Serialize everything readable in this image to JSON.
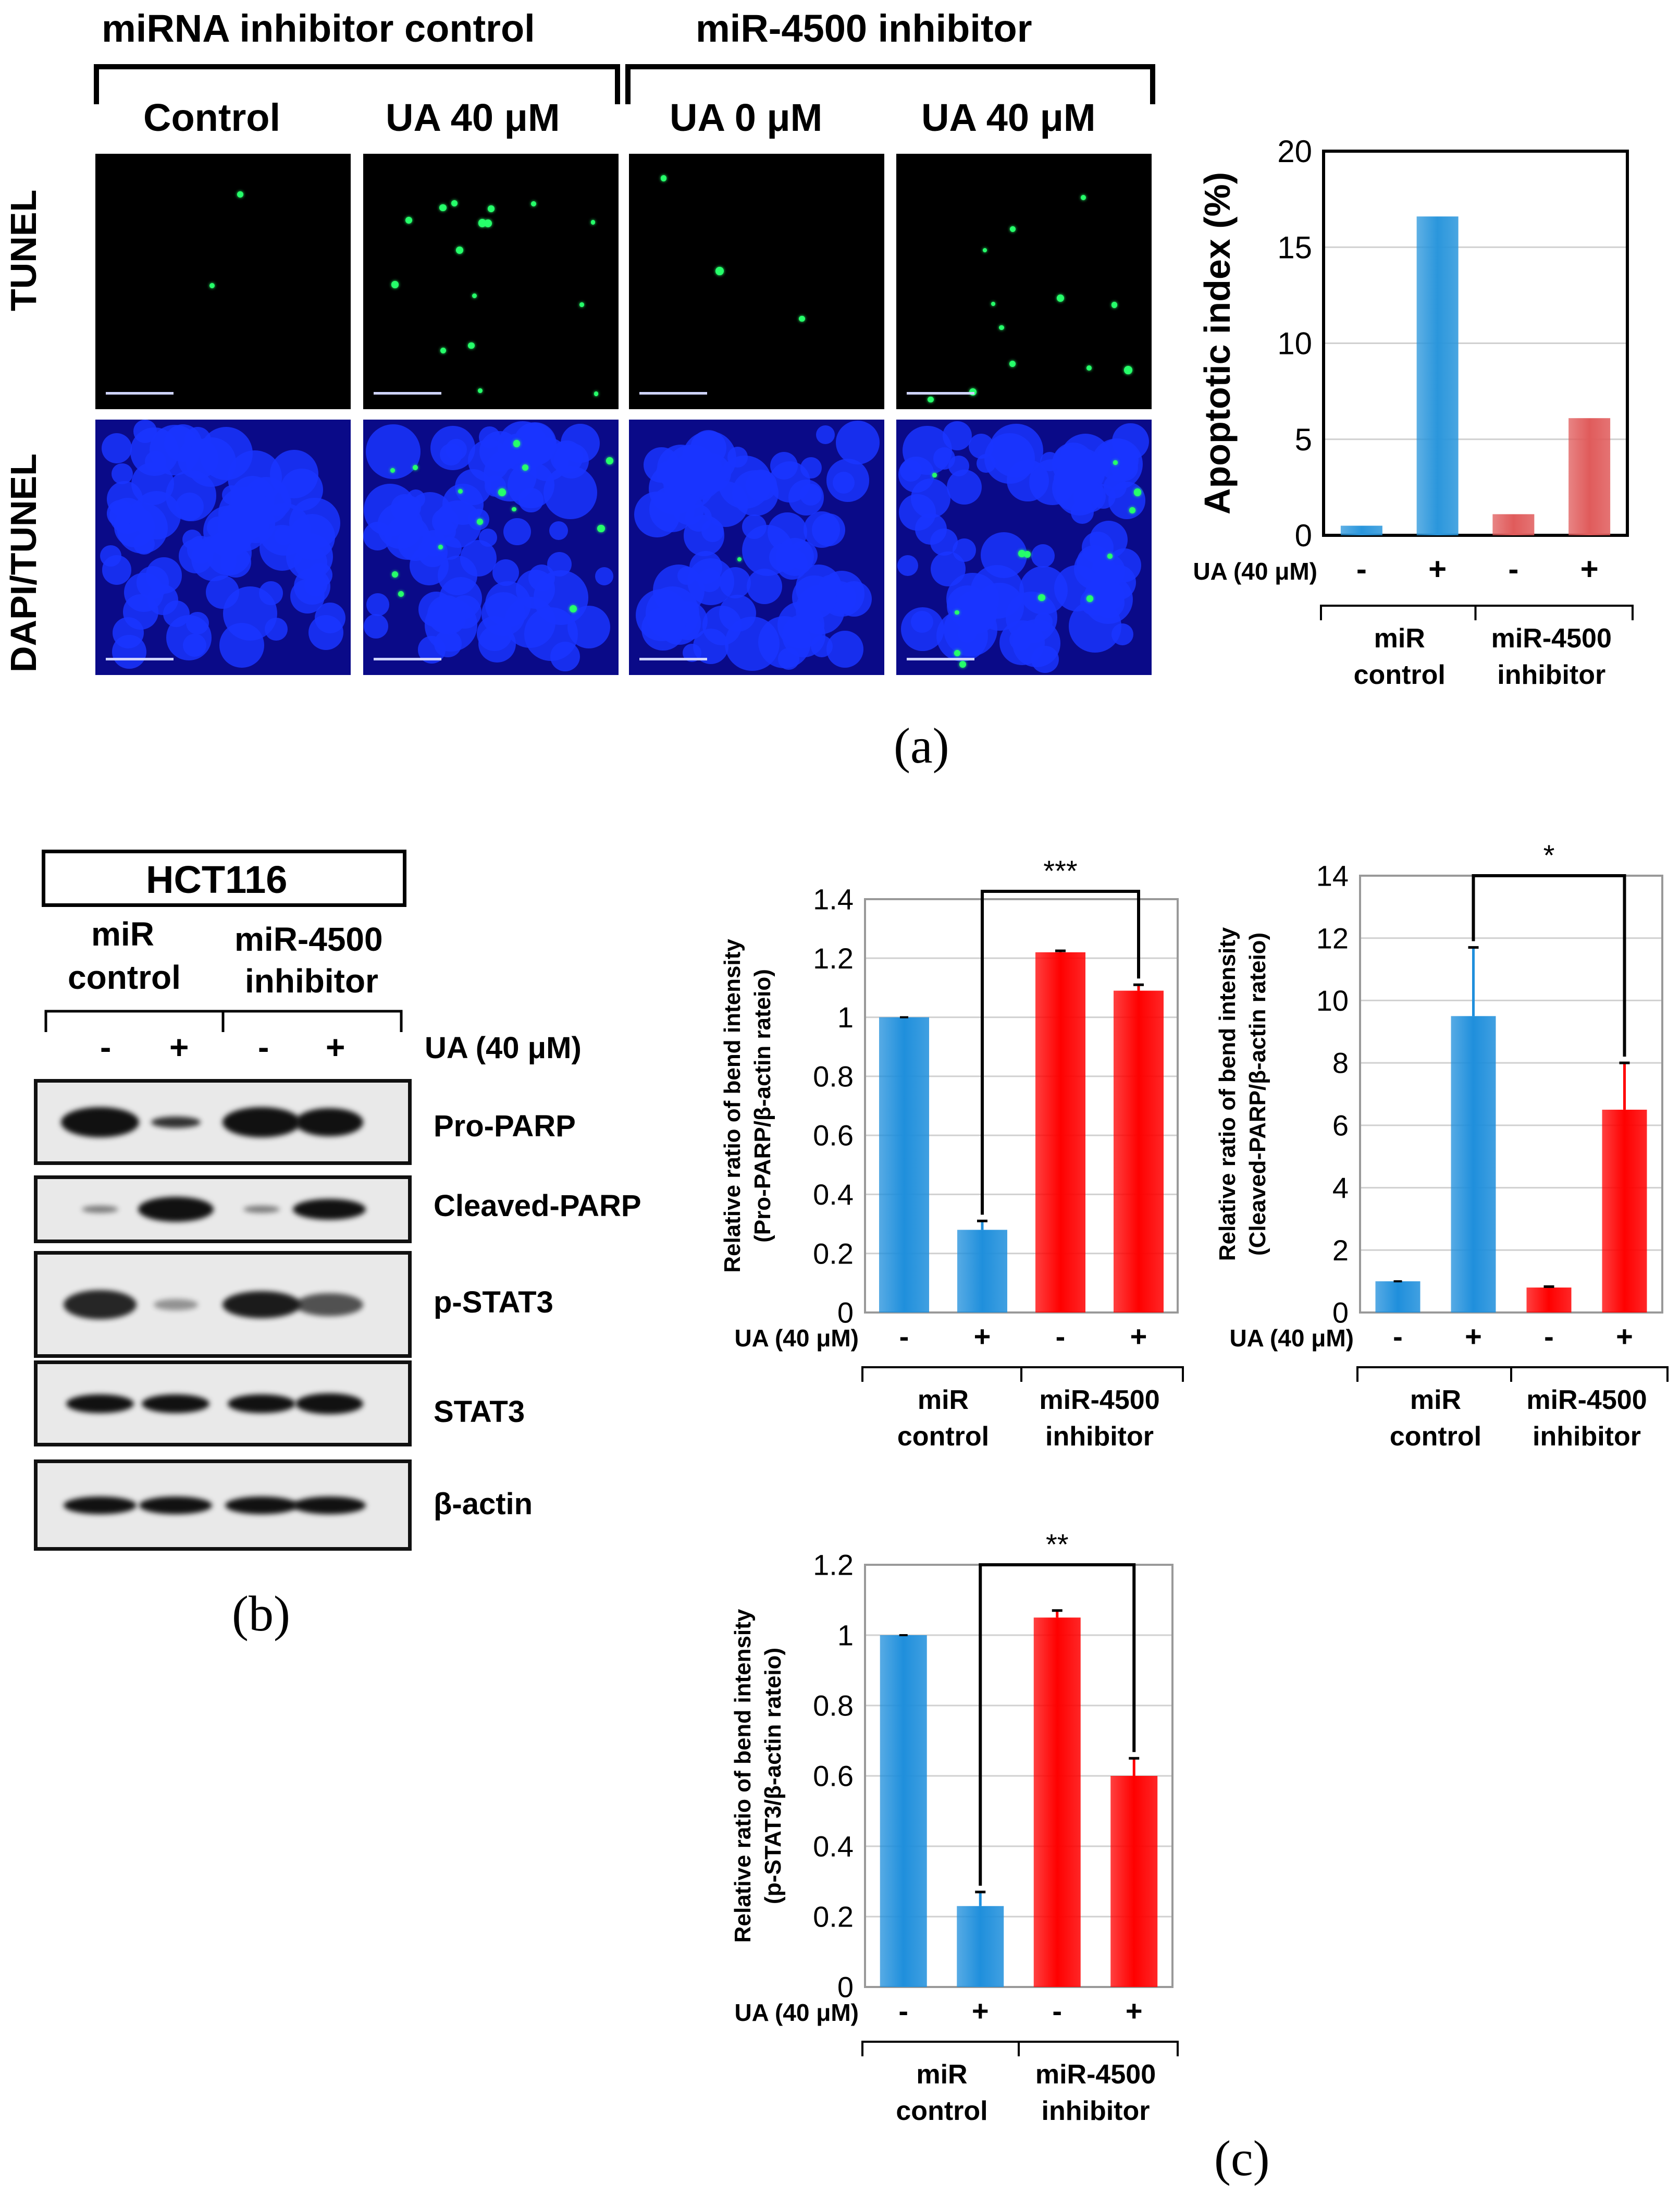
{
  "panel_a": {
    "letter": "(a)",
    "group_left": "miRNA inhibitor control",
    "group_right": "miR-4500 inhibitor",
    "col_labels": [
      "Control",
      "UA 40 μM",
      "UA 0 μM",
      "UA 40 μM"
    ],
    "row_labels": [
      "TUNEL",
      "DAPI/TUNEL"
    ]
  },
  "panel_b": {
    "letter": "(b)",
    "cell_line": "HCT116",
    "group1": [
      "miR",
      "control"
    ],
    "group2": [
      "miR-4500",
      "inhibitor"
    ],
    "signs": [
      "-",
      "+",
      "-",
      "+"
    ],
    "treatment_label": "UA (40 μM)",
    "blot_labels": [
      "Pro-PARP",
      "Cleaved-PARP",
      "p-STAT3",
      "STAT3",
      "β-actin"
    ]
  },
  "panel_c": {
    "letter": "(c)"
  },
  "colors": {
    "blue": "#1f8fdc",
    "red_a": "#e05b5b",
    "red_c": "#ff0000"
  },
  "chart_data": [
    {
      "id": "apoptotic",
      "type": "bar",
      "ylabel": "Apoptotic index (%)",
      "ylim": [
        0,
        20
      ],
      "yticks": [
        0,
        5,
        10,
        15,
        20
      ],
      "treatment_label": "UA (40 μM)",
      "signs": [
        "-",
        "+",
        "-",
        "+"
      ],
      "groups": [
        [
          "miR",
          "control"
        ],
        [
          "miR-4500",
          "inhibitor"
        ]
      ],
      "values": [
        0.5,
        16.6,
        1.1,
        6.1
      ],
      "colors": [
        "#2a96dc",
        "#2a96dc",
        "#e05b5b",
        "#e05b5b"
      ],
      "grid": true
    },
    {
      "id": "propa",
      "type": "bar",
      "ylabel": [
        "Relative ratio of bend intensity",
        "(Pro-PARP/β-actin rateio)"
      ],
      "ylim": [
        0,
        1.4
      ],
      "yticks": [
        "0",
        "0.2",
        "0.4",
        "0.6",
        "0.8",
        "1",
        "1.2",
        "1.4"
      ],
      "treatment_label": "UA (40 μM)",
      "signs": [
        "-",
        "+",
        "-",
        "+"
      ],
      "groups": [
        [
          "miR",
          "control"
        ],
        [
          "miR-4500",
          "inhibitor"
        ]
      ],
      "values": [
        1.0,
        0.28,
        1.22,
        1.09
      ],
      "errors": [
        0.0,
        0.03,
        0.005,
        0.02
      ],
      "colors": [
        "#1f8fdc",
        "#1f8fdc",
        "#ff0000",
        "#ff0000"
      ],
      "significance": "***",
      "bracket": [
        1,
        3
      ],
      "grid": true
    },
    {
      "id": "cleaved",
      "type": "bar",
      "ylabel": [
        "Relative ratio of bend intensity",
        "(Cleaved-PARP/β-actin rateio)"
      ],
      "ylim": [
        0,
        14
      ],
      "yticks": [
        "0",
        "2",
        "4",
        "6",
        "8",
        "10",
        "12",
        "14"
      ],
      "treatment_label": "UA (40 μM)",
      "signs": [
        "-",
        "+",
        "-",
        "+"
      ],
      "groups": [
        [
          "miR",
          "control"
        ],
        [
          "miR-4500",
          "inhibitor"
        ]
      ],
      "values": [
        1.0,
        9.5,
        0.8,
        6.5
      ],
      "errors": [
        0.0,
        2.2,
        0.03,
        1.5
      ],
      "colors": [
        "#1f8fdc",
        "#1f8fdc",
        "#ff0000",
        "#ff0000"
      ],
      "significance": "*",
      "bracket": [
        1,
        3
      ],
      "grid": true
    },
    {
      "id": "pstat3",
      "type": "bar",
      "ylabel": [
        "Relative ratio of bend intensity",
        "(p-STAT3/β-actin rateio)"
      ],
      "ylim": [
        0,
        1.2
      ],
      "yticks": [
        "0",
        "0.2",
        "0.4",
        "0.6",
        "0.8",
        "1",
        "1.2"
      ],
      "treatment_label": "UA (40 μM)",
      "signs": [
        "-",
        "+",
        "-",
        "+"
      ],
      "groups": [
        [
          "miR",
          "control"
        ],
        [
          "miR-4500",
          "inhibitor"
        ]
      ],
      "values": [
        1.0,
        0.23,
        1.05,
        0.6
      ],
      "errors": [
        0.0,
        0.04,
        0.02,
        0.05
      ],
      "colors": [
        "#1f8fdc",
        "#1f8fdc",
        "#ff0000",
        "#ff0000"
      ],
      "significance": "**",
      "bracket": [
        1,
        3
      ],
      "grid": true
    }
  ]
}
